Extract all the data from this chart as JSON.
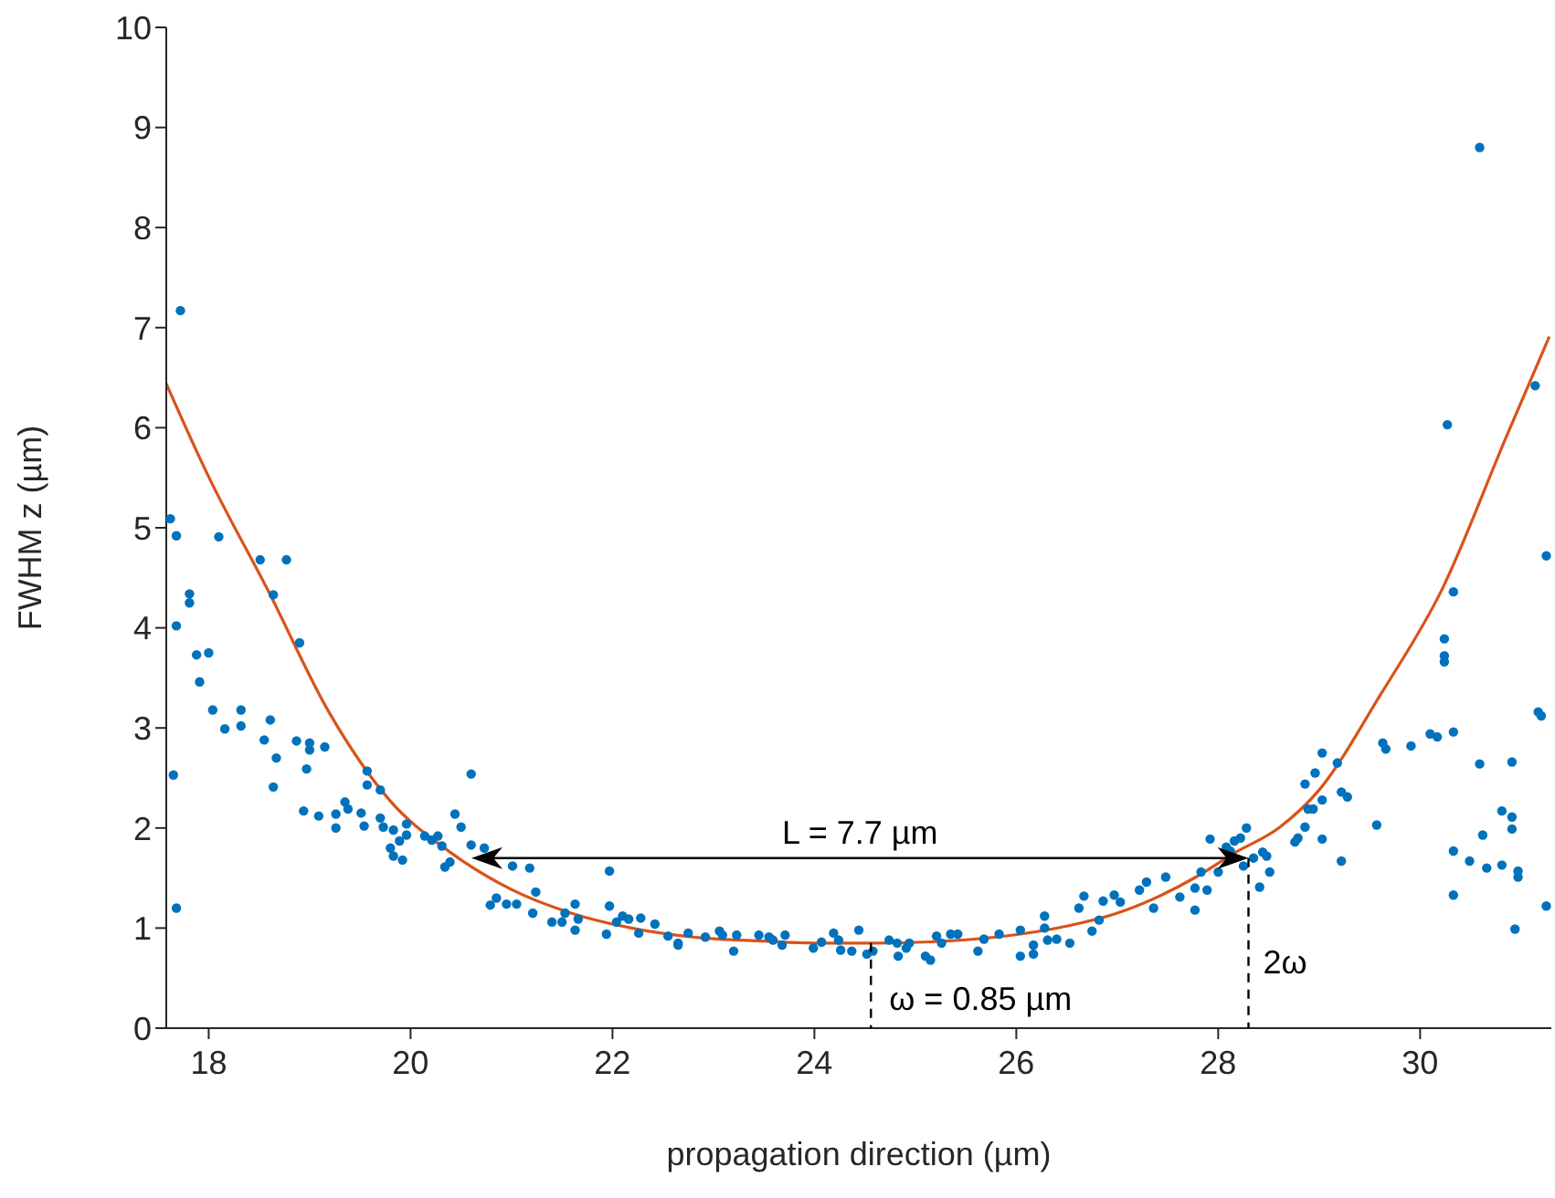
{
  "chart_data": {
    "type": "scatter",
    "xlabel": "propagation direction (µm)",
    "ylabel": "FWHM z (µm)",
    "xlim": [
      17.58,
      31.3
    ],
    "ylim": [
      0,
      10
    ],
    "xticks": [
      18,
      20,
      22,
      24,
      26,
      28,
      30
    ],
    "yticks": [
      0,
      1,
      2,
      3,
      4,
      5,
      6,
      7,
      8,
      9,
      10
    ],
    "grid": false,
    "legend": false,
    "annotations": [
      "L = 7.7 µm",
      {
        "text": "ω = 0.85 µm",
        "x": 24.56,
        "y": 0.85
      },
      {
        "text": "2ω",
        "x": 28.3,
        "y": 1.7
      }
    ],
    "series": [
      {
        "marker": "circle",
        "color": "#0072bd",
        "x": [
          17.72,
          17.62,
          17.68,
          17.68,
          17.65,
          17.68,
          17.81,
          17.81,
          17.88,
          18.0,
          17.91,
          18.04,
          18.1,
          18.16,
          18.32,
          18.32,
          18.51,
          18.64,
          18.77,
          18.61,
          18.55,
          18.67,
          18.64,
          18.9,
          18.87,
          19.0,
          19.0,
          19.15,
          18.97,
          18.94,
          19.09,
          19.26,
          19.26,
          19.35,
          19.38,
          19.51,
          19.54,
          19.57,
          19.57,
          19.7,
          19.7,
          19.73,
          19.83,
          19.8,
          19.83,
          19.89,
          19.92,
          19.96,
          19.96,
          20.14,
          20.21,
          20.27,
          20.31,
          20.34,
          20.39,
          20.44,
          20.5,
          20.6,
          20.6,
          20.73,
          20.79,
          20.85,
          20.95,
          21.01,
          21.05,
          21.18,
          21.24,
          21.21,
          21.4,
          21.5,
          21.53,
          21.63,
          21.63,
          21.66,
          21.94,
          21.97,
          21.97,
          22.04,
          22.1,
          22.16,
          22.26,
          22.28,
          22.42,
          22.55,
          22.65,
          22.65,
          22.75,
          22.92,
          23.06,
          23.09,
          23.2,
          23.23,
          23.45,
          23.55,
          23.59,
          23.68,
          23.71,
          23.99,
          24.07,
          24.19,
          24.24,
          24.26,
          24.44,
          24.37,
          24.52,
          24.58,
          24.74,
          24.82,
          24.83,
          24.91,
          24.94,
          25.1,
          25.15,
          25.21,
          25.26,
          25.35,
          25.42,
          25.62,
          25.68,
          25.83,
          26.04,
          26.04,
          26.17,
          26.17,
          26.28,
          26.28,
          26.31,
          26.4,
          26.53,
          26.62,
          26.67,
          26.75,
          26.82,
          26.86,
          26.97,
          27.03,
          27.22,
          27.29,
          27.36,
          27.48,
          27.62,
          27.77,
          27.77,
          27.83,
          27.89,
          27.92,
          28.0,
          28.08,
          28.12,
          28.16,
          28.22,
          28.25,
          28.28,
          28.35,
          28.41,
          28.44,
          28.48,
          28.51,
          28.76,
          28.79,
          28.86,
          28.86,
          28.89,
          28.94,
          28.96,
          29.03,
          29.03,
          29.03,
          29.18,
          29.22,
          29.28,
          29.22,
          29.57,
          29.63,
          29.66,
          29.91,
          30.1,
          30.17,
          30.24,
          30.24,
          30.24,
          30.27,
          30.33,
          30.33,
          30.33,
          30.33,
          30.49,
          30.59,
          30.59,
          30.62,
          30.66,
          30.81,
          30.81,
          30.91,
          30.91,
          30.91,
          30.94,
          30.97,
          30.97,
          31.14,
          31.17,
          31.2,
          31.25,
          31.25
        ],
        "values": [
          7.17,
          5.09,
          4.92,
          4.02,
          2.53,
          1.2,
          4.34,
          4.25,
          3.73,
          3.75,
          3.46,
          3.18,
          4.91,
          2.99,
          3.18,
          3.02,
          4.68,
          4.33,
          4.68,
          3.08,
          2.88,
          2.7,
          2.41,
          3.85,
          2.87,
          2.85,
          2.78,
          2.81,
          2.59,
          2.17,
          2.12,
          2.14,
          2.0,
          2.26,
          2.19,
          2.15,
          2.02,
          2.57,
          2.43,
          2.38,
          2.1,
          2.01,
          1.98,
          1.8,
          1.72,
          1.87,
          1.68,
          2.04,
          1.93,
          1.92,
          1.88,
          1.92,
          1.82,
          1.61,
          1.66,
          2.14,
          2.01,
          2.54,
          1.83,
          1.8,
          1.23,
          1.3,
          1.24,
          1.62,
          1.24,
          1.6,
          1.36,
          1.15,
          1.06,
          1.06,
          1.15,
          1.24,
          0.98,
          1.09,
          0.94,
          1.57,
          1.22,
          1.06,
          1.12,
          1.09,
          0.95,
          1.1,
          1.04,
          0.92,
          0.85,
          0.83,
          0.95,
          0.91,
          0.97,
          0.93,
          0.77,
          0.93,
          0.93,
          0.91,
          0.88,
          0.83,
          0.93,
          0.8,
          0.86,
          0.95,
          0.88,
          0.78,
          0.98,
          0.77,
          0.74,
          0.77,
          0.88,
          0.85,
          0.72,
          0.8,
          0.85,
          0.72,
          0.68,
          0.92,
          0.85,
          0.94,
          0.94,
          0.77,
          0.89,
          0.94,
          0.72,
          0.98,
          0.74,
          0.83,
          1.12,
          1.0,
          0.88,
          0.89,
          0.85,
          1.2,
          1.32,
          0.97,
          1.08,
          1.27,
          1.33,
          1.26,
          1.38,
          1.46,
          1.2,
          1.51,
          1.31,
          1.4,
          1.18,
          1.56,
          1.38,
          1.89,
          1.56,
          1.81,
          1.77,
          1.87,
          1.9,
          1.62,
          2.0,
          1.7,
          1.41,
          1.76,
          1.72,
          1.56,
          1.86,
          1.9,
          2.01,
          2.44,
          2.19,
          2.19,
          2.55,
          2.75,
          2.28,
          1.89,
          2.65,
          2.36,
          2.31,
          1.67,
          2.03,
          2.85,
          2.79,
          2.82,
          2.94,
          2.91,
          3.89,
          3.72,
          3.66,
          6.03,
          4.36,
          2.96,
          1.77,
          1.33,
          1.67,
          8.8,
          2.64,
          1.93,
          1.6,
          2.17,
          1.63,
          2.66,
          2.11,
          1.99,
          0.99,
          1.57,
          1.51,
          6.42,
          3.16,
          3.12,
          4.72,
          1.22
        ]
      },
      {
        "type": "line",
        "color": "#d95319",
        "x": [
          17.58,
          17.99,
          18.59,
          19.19,
          19.79,
          20.39,
          20.99,
          21.59,
          22.19,
          22.8,
          23.5,
          24.0,
          24.6,
          25.3,
          26.04,
          26.5,
          27.0,
          27.78,
          28.16,
          28.6,
          29.0,
          29.6,
          30.22,
          30.85,
          31.28
        ],
        "values": [
          6.44,
          5.53,
          4.37,
          3.16,
          2.28,
          1.76,
          1.39,
          1.15,
          1.0,
          0.91,
          0.87,
          0.85,
          0.85,
          0.87,
          0.94,
          1.02,
          1.15,
          1.51,
          1.75,
          2.0,
          2.38,
          3.32,
          4.39,
          5.9,
          6.91
        ]
      }
    ]
  }
}
